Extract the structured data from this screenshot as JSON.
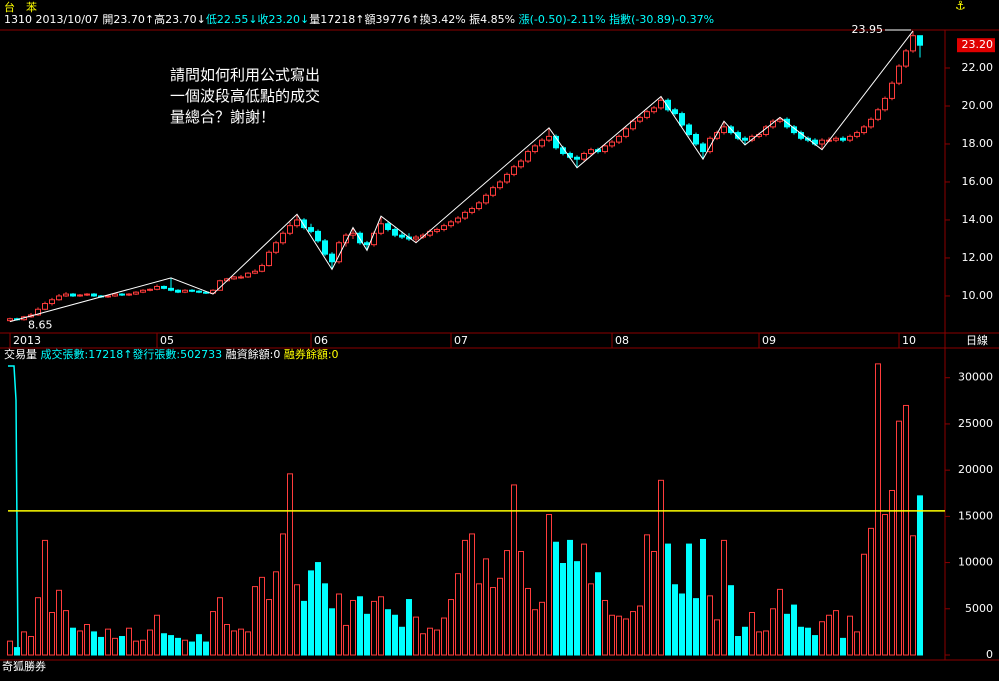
{
  "header": {
    "name": "台　苯",
    "info": [
      {
        "text": "1310 2013/10/07 ",
        "color": "#ffffff"
      },
      {
        "text": "開23.70↑",
        "color": "#ffffff"
      },
      {
        "text": "高23.70↓",
        "color": "#ffffff"
      },
      {
        "text": "低22.55↓",
        "color": "#00ffff"
      },
      {
        "text": "收23.20↓",
        "color": "#00ffff"
      },
      {
        "text": "量17218↑",
        "color": "#ffffff"
      },
      {
        "text": "額39776↑",
        "color": "#ffffff"
      },
      {
        "text": "換3.42% ",
        "color": "#ffffff"
      },
      {
        "text": "振4.85% ",
        "color": "#ffffff"
      },
      {
        "text": "漲(-0.50)-2.11% ",
        "color": "#00ffff"
      },
      {
        "text": "指數(-30.89)-0.37%",
        "color": "#00ffff"
      }
    ]
  },
  "chart_data": [
    {
      "type": "candlestick",
      "annotation": [
        "請問如何利用公式寫出",
        "一個波段高低點的成交",
        "量總合？謝謝！"
      ],
      "period": "日線",
      "categories": [
        "2013",
        null,
        null,
        null,
        null,
        null,
        null,
        null,
        null,
        null,
        null,
        null,
        null,
        null,
        null,
        null,
        null,
        null,
        null,
        null,
        null,
        "05",
        null,
        null,
        null,
        null,
        null,
        null,
        null,
        null,
        null,
        null,
        null,
        null,
        null,
        null,
        null,
        null,
        null,
        null,
        null,
        null,
        null,
        "06",
        null,
        null,
        null,
        null,
        null,
        null,
        null,
        null,
        null,
        null,
        null,
        null,
        null,
        null,
        null,
        null,
        null,
        null,
        null,
        "07",
        null,
        null,
        null,
        null,
        null,
        null,
        null,
        null,
        null,
        null,
        null,
        null,
        null,
        null,
        null,
        null,
        null,
        null,
        null,
        null,
        null,
        null,
        "08",
        null,
        null,
        null,
        null,
        null,
        null,
        null,
        null,
        null,
        null,
        null,
        null,
        null,
        null,
        null,
        null,
        null,
        null,
        null,
        null,
        "09",
        null,
        null,
        null,
        null,
        null,
        null,
        null,
        null,
        null,
        null,
        null,
        null,
        null,
        null,
        null,
        null,
        null,
        null,
        null,
        "10",
        null,
        null,
        null
      ],
      "candles": [
        [
          8.7,
          8.85,
          8.65,
          8.8
        ],
        [
          8.8,
          8.85,
          8.7,
          8.75
        ],
        [
          8.75,
          8.95,
          8.7,
          8.9
        ],
        [
          8.9,
          9.1,
          8.85,
          9.0
        ],
        [
          9.0,
          9.4,
          8.95,
          9.3
        ],
        [
          9.3,
          9.7,
          9.25,
          9.6
        ],
        [
          9.6,
          9.9,
          9.5,
          9.8
        ],
        [
          9.8,
          10.1,
          9.75,
          10.0
        ],
        [
          10.0,
          10.2,
          9.95,
          10.1
        ],
        [
          10.1,
          10.15,
          9.95,
          10.0
        ],
        [
          10.0,
          10.1,
          9.95,
          10.05
        ],
        [
          10.05,
          10.15,
          10.0,
          10.1
        ],
        [
          10.1,
          10.15,
          9.95,
          10.0
        ],
        [
          10.0,
          10.05,
          9.9,
          9.95
        ],
        [
          9.95,
          10.05,
          9.9,
          10.0
        ],
        [
          10.0,
          10.15,
          9.95,
          10.1
        ],
        [
          10.1,
          10.15,
          10.0,
          10.05
        ],
        [
          10.05,
          10.15,
          10.0,
          10.1
        ],
        [
          10.1,
          10.25,
          10.05,
          10.2
        ],
        [
          10.2,
          10.35,
          10.15,
          10.3
        ],
        [
          10.3,
          10.4,
          10.25,
          10.35
        ],
        [
          10.35,
          10.6,
          10.3,
          10.5
        ],
        [
          10.5,
          10.55,
          10.35,
          10.4
        ],
        [
          10.4,
          10.95,
          10.25,
          10.3
        ],
        [
          10.3,
          10.35,
          10.15,
          10.2
        ],
        [
          10.2,
          10.35,
          10.15,
          10.3
        ],
        [
          10.3,
          10.35,
          10.2,
          10.25
        ],
        [
          10.25,
          10.3,
          10.15,
          10.2
        ],
        [
          10.2,
          10.25,
          10.1,
          10.15
        ],
        [
          10.15,
          10.35,
          10.1,
          10.3
        ],
        [
          10.3,
          10.85,
          10.3,
          10.8
        ],
        [
          10.8,
          10.95,
          10.75,
          10.9
        ],
        [
          10.9,
          11.05,
          10.85,
          11.0
        ],
        [
          11.0,
          11.1,
          10.9,
          11.0
        ],
        [
          11.0,
          11.25,
          10.95,
          11.2
        ],
        [
          11.2,
          11.4,
          11.15,
          11.3
        ],
        [
          11.3,
          11.7,
          11.25,
          11.6
        ],
        [
          11.6,
          12.4,
          11.55,
          12.3
        ],
        [
          12.3,
          12.9,
          12.2,
          12.8
        ],
        [
          12.8,
          13.4,
          12.7,
          13.3
        ],
        [
          13.3,
          13.9,
          13.2,
          13.7
        ],
        [
          13.7,
          14.3,
          13.6,
          14.0
        ],
        [
          14.0,
          14.1,
          13.5,
          13.6
        ],
        [
          13.6,
          13.8,
          13.3,
          13.4
        ],
        [
          13.4,
          13.5,
          12.8,
          12.9
        ],
        [
          12.9,
          13.0,
          12.1,
          12.2
        ],
        [
          12.2,
          12.3,
          11.4,
          11.8
        ],
        [
          11.8,
          12.9,
          11.7,
          12.8
        ],
        [
          12.8,
          13.3,
          12.6,
          13.2
        ],
        [
          13.2,
          13.6,
          13.0,
          13.3
        ],
        [
          13.3,
          13.4,
          12.7,
          12.8
        ],
        [
          12.8,
          12.9,
          12.4,
          12.7
        ],
        [
          12.7,
          13.4,
          12.6,
          13.3
        ],
        [
          13.3,
          14.2,
          13.2,
          13.8
        ],
        [
          13.8,
          13.9,
          13.4,
          13.5
        ],
        [
          13.5,
          13.6,
          13.1,
          13.2
        ],
        [
          13.2,
          13.4,
          13.0,
          13.1
        ],
        [
          13.1,
          13.3,
          12.9,
          13.0
        ],
        [
          13.0,
          13.2,
          12.8,
          13.1
        ],
        [
          13.1,
          13.3,
          13.0,
          13.2
        ],
        [
          13.2,
          13.5,
          13.1,
          13.4
        ],
        [
          13.4,
          13.6,
          13.3,
          13.5
        ],
        [
          13.5,
          13.8,
          13.4,
          13.7
        ],
        [
          13.7,
          14.0,
          13.6,
          13.9
        ],
        [
          13.9,
          14.2,
          13.8,
          14.1
        ],
        [
          14.1,
          14.5,
          14.0,
          14.4
        ],
        [
          14.4,
          14.7,
          14.3,
          14.6
        ],
        [
          14.6,
          15.0,
          14.5,
          14.9
        ],
        [
          14.9,
          15.4,
          14.8,
          15.3
        ],
        [
          15.3,
          15.8,
          15.2,
          15.7
        ],
        [
          15.7,
          16.1,
          15.6,
          16.0
        ],
        [
          16.0,
          16.5,
          15.9,
          16.4
        ],
        [
          16.4,
          16.9,
          16.3,
          16.8
        ],
        [
          16.8,
          17.2,
          16.7,
          17.1
        ],
        [
          17.1,
          17.7,
          17.0,
          17.6
        ],
        [
          17.6,
          18.0,
          17.5,
          17.9
        ],
        [
          17.9,
          18.3,
          17.8,
          18.2
        ],
        [
          18.2,
          18.85,
          18.1,
          18.4
        ],
        [
          18.4,
          18.5,
          17.7,
          17.8
        ],
        [
          17.8,
          17.9,
          17.4,
          17.5
        ],
        [
          17.5,
          17.6,
          17.2,
          17.3
        ],
        [
          17.3,
          17.4,
          16.75,
          17.2
        ],
        [
          17.2,
          17.6,
          17.1,
          17.5
        ],
        [
          17.5,
          17.8,
          17.4,
          17.7
        ],
        [
          17.7,
          17.8,
          17.5,
          17.6
        ],
        [
          17.6,
          18.0,
          17.5,
          17.9
        ],
        [
          17.9,
          18.2,
          17.8,
          18.1
        ],
        [
          18.1,
          18.5,
          18.0,
          18.4
        ],
        [
          18.4,
          18.9,
          18.3,
          18.8
        ],
        [
          18.8,
          19.3,
          18.7,
          19.2
        ],
        [
          19.2,
          19.5,
          19.1,
          19.4
        ],
        [
          19.4,
          19.8,
          19.3,
          19.7
        ],
        [
          19.7,
          20.0,
          19.6,
          19.9
        ],
        [
          19.9,
          20.5,
          19.8,
          20.3
        ],
        [
          20.3,
          20.4,
          19.7,
          19.8
        ],
        [
          19.8,
          19.9,
          19.5,
          19.6
        ],
        [
          19.6,
          19.7,
          18.9,
          19.0
        ],
        [
          19.0,
          19.1,
          18.4,
          18.5
        ],
        [
          18.5,
          18.6,
          17.9,
          18.0
        ],
        [
          18.0,
          18.1,
          17.2,
          17.6
        ],
        [
          17.6,
          18.4,
          17.5,
          18.3
        ],
        [
          18.3,
          18.7,
          18.2,
          18.6
        ],
        [
          18.6,
          19.2,
          18.5,
          18.9
        ],
        [
          18.9,
          19.0,
          18.5,
          18.6
        ],
        [
          18.6,
          18.7,
          18.2,
          18.3
        ],
        [
          18.3,
          18.4,
          17.95,
          18.2
        ],
        [
          18.2,
          18.5,
          18.1,
          18.4
        ],
        [
          18.4,
          18.6,
          18.3,
          18.5
        ],
        [
          18.5,
          19.0,
          18.4,
          18.9
        ],
        [
          18.9,
          19.3,
          18.8,
          19.2
        ],
        [
          19.2,
          19.4,
          19.1,
          19.3
        ],
        [
          19.3,
          19.4,
          18.8,
          18.9
        ],
        [
          18.9,
          19.0,
          18.5,
          18.6
        ],
        [
          18.6,
          18.7,
          18.2,
          18.3
        ],
        [
          18.3,
          18.4,
          18.1,
          18.2
        ],
        [
          18.2,
          18.3,
          17.9,
          18.0
        ],
        [
          18.0,
          18.3,
          17.7,
          18.2
        ],
        [
          18.2,
          18.35,
          18.1,
          18.2
        ],
        [
          18.2,
          18.4,
          18.1,
          18.3
        ],
        [
          18.3,
          18.4,
          18.1,
          18.2
        ],
        [
          18.2,
          18.5,
          18.1,
          18.4
        ],
        [
          18.4,
          18.7,
          18.3,
          18.6
        ],
        [
          18.6,
          19.0,
          18.5,
          18.9
        ],
        [
          18.9,
          19.4,
          18.8,
          19.3
        ],
        [
          19.3,
          19.9,
          19.2,
          19.8
        ],
        [
          19.8,
          20.5,
          19.7,
          20.4
        ],
        [
          20.4,
          21.3,
          20.3,
          21.2
        ],
        [
          21.2,
          22.2,
          21.1,
          22.1
        ],
        [
          22.1,
          23.0,
          22.0,
          22.9
        ],
        [
          22.9,
          23.95,
          22.8,
          23.7
        ],
        [
          23.7,
          23.7,
          22.55,
          23.2
        ]
      ],
      "up_color": "#ff3c3c",
      "down_color": "#00ffff",
      "zigzag": {
        "x": [
          0,
          23,
          29,
          41,
          46,
          49,
          51,
          53,
          58,
          77,
          81,
          93,
          99,
          102,
          105,
          110,
          116,
          129
        ],
        "values": [
          8.65,
          10.95,
          10.1,
          14.3,
          11.4,
          13.6,
          12.4,
          14.2,
          12.8,
          18.85,
          16.75,
          20.5,
          17.2,
          19.2,
          17.95,
          19.4,
          17.7,
          23.95
        ],
        "color": "#ffffff"
      },
      "last_price": {
        "value": 23.2,
        "label": "23.20"
      },
      "ylim": [
        8.05,
        24
      ],
      "yticks": [
        {
          "value": 10,
          "label": "10.00"
        },
        {
          "value": 12,
          "label": "12.00"
        },
        {
          "value": 14,
          "label": "14.00"
        },
        {
          "value": 16,
          "label": "16.00"
        },
        {
          "value": 18,
          "label": "18.00"
        },
        {
          "value": 20,
          "label": "20.00"
        },
        {
          "value": 22,
          "label": "22.00"
        }
      ]
    },
    {
      "type": "volume",
      "header": [
        {
          "text": "交易量 ",
          "color": "#ffffff"
        },
        {
          "text": "成交張數:17218↑",
          "color": "#00ffff"
        },
        {
          "text": "發行張數:502733 ",
          "color": "#00ffff"
        },
        {
          "text": "融資餘額:0 ",
          "color": "#ffffff"
        },
        {
          "text": "融券餘額:0",
          "color": "#ffff00"
        }
      ],
      "footer": "奇狐勝券",
      "values": [
        1500,
        800,
        2500,
        2000,
        6200,
        12400,
        4600,
        7000,
        4800,
        2900,
        2600,
        3300,
        2500,
        1900,
        2800,
        1800,
        2000,
        2900,
        1500,
        1600,
        2700,
        4300,
        2300,
        2100,
        1800,
        1600,
        1400,
        2200,
        1400,
        4700,
        6200,
        3300,
        2600,
        2800,
        2500,
        7400,
        8400,
        6000,
        9000,
        13100,
        19600,
        7600,
        5800,
        9100,
        10000,
        7700,
        5000,
        6600,
        3200,
        5900,
        6300,
        4400,
        5800,
        6300,
        4900,
        4300,
        3000,
        6000,
        4100,
        2300,
        2900,
        2700,
        4000,
        6000,
        8800,
        12400,
        13100,
        7700,
        10400,
        7300,
        8300,
        11300,
        18400,
        11200,
        7200,
        4900,
        5700,
        15200,
        12200,
        9900,
        12400,
        10100,
        12000,
        7700,
        8900,
        5900,
        4300,
        4200,
        3900,
        4700,
        5300,
        13000,
        11200,
        18900,
        12000,
        7600,
        6600,
        12000,
        6100,
        12500,
        6400,
        3800,
        12400,
        7500,
        2000,
        3000,
        4600,
        2500,
        2600,
        5000,
        7100,
        4400,
        5400,
        3000,
        2900,
        2100,
        3600,
        4300,
        4800,
        1800,
        4200,
        2500,
        10900,
        13700,
        31500,
        15200,
        17800,
        25300,
        27000,
        12900,
        17218
      ],
      "reference_line": {
        "value": 15600,
        "color": "#ffff00"
      },
      "ylim": [
        0,
        33000
      ],
      "yticks": [
        0,
        5000,
        10000,
        15000,
        20000,
        25000,
        30000
      ]
    }
  ]
}
